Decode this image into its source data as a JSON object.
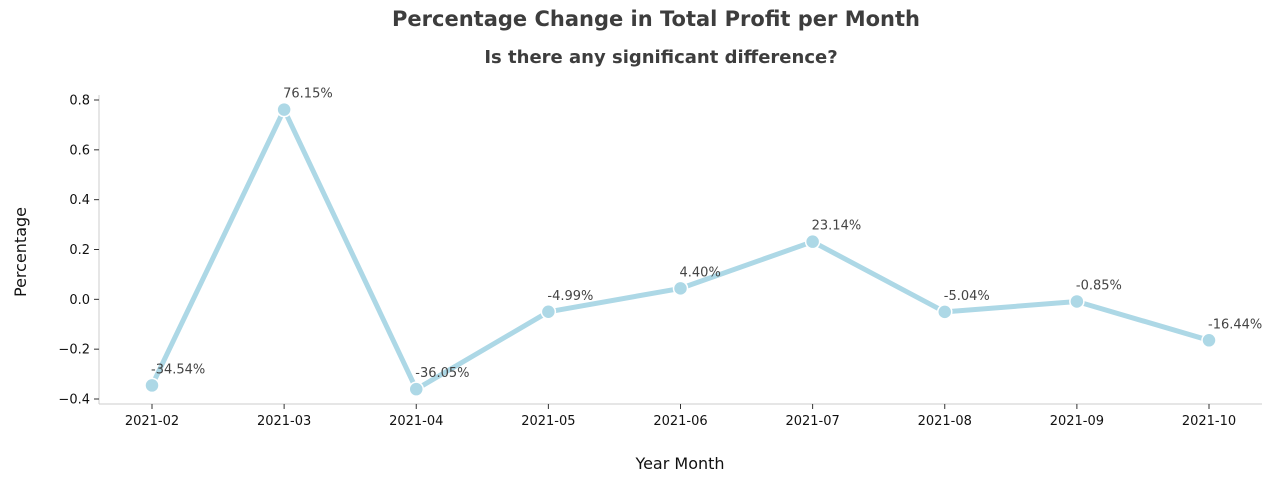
{
  "chart_data": {
    "type": "line",
    "title": "Percentage Change in Total Profit per Month",
    "subtitle": "Is there any significant difference?",
    "xlabel": "Year Month",
    "ylabel": "Percentage",
    "categories": [
      "2021-02",
      "2021-03",
      "2021-04",
      "2021-05",
      "2021-06",
      "2021-07",
      "2021-08",
      "2021-09",
      "2021-10"
    ],
    "values": [
      -0.3454,
      0.7615,
      -0.3605,
      -0.0499,
      0.044,
      0.2314,
      -0.0504,
      -0.0085,
      -0.1644
    ],
    "data_labels": [
      "-34.54%",
      "76.15%",
      "-36.05%",
      "-4.99%",
      "4.40%",
      "23.14%",
      "-5.04%",
      "-0.85%",
      "-16.44%"
    ],
    "yticks": [
      "−0.4",
      "−0.2",
      "0.0",
      "0.2",
      "0.4",
      "0.6",
      "0.8"
    ],
    "ytick_values": [
      -0.4,
      -0.2,
      0.0,
      0.2,
      0.4,
      0.6,
      0.8
    ],
    "ylim": [
      -0.42,
      0.82
    ],
    "grid": false,
    "legend": "none",
    "line_color": "#add8e6",
    "marker_color": "#add8e6"
  }
}
